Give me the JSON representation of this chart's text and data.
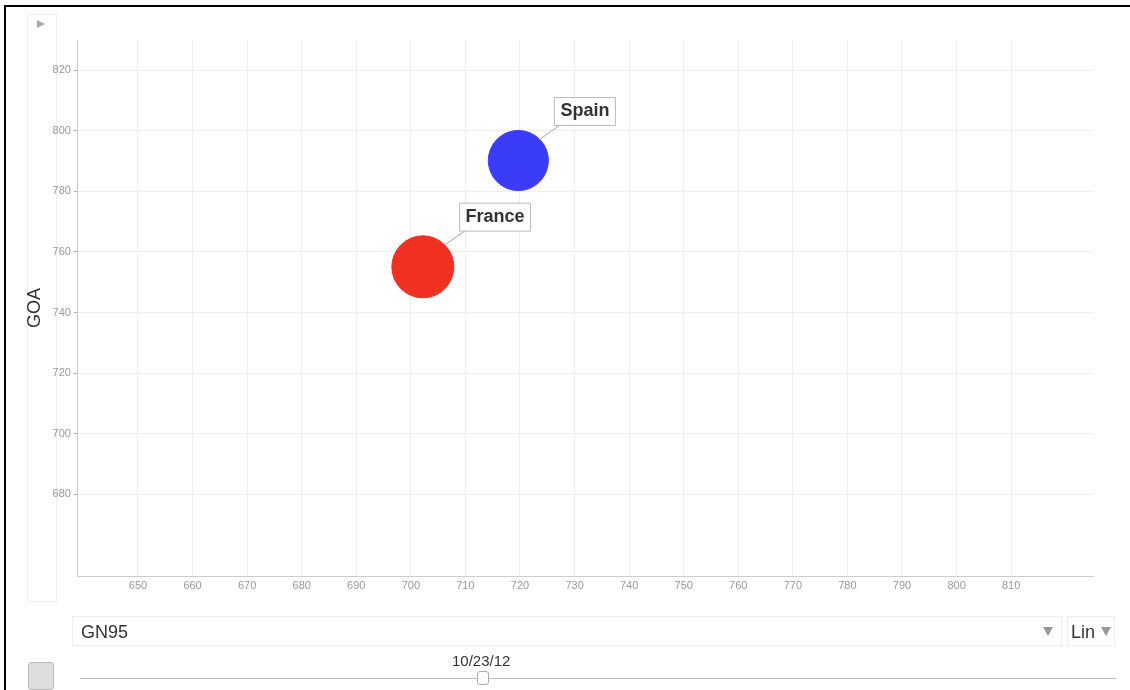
{
  "chart_data": {
    "type": "bubble",
    "xlabel": "GN95",
    "ylabel": "GOA",
    "annotations": [
      "10/23/12",
      "Lin"
    ],
    "xlim": [
      639,
      825
    ],
    "ylim": [
      653,
      830
    ],
    "xticks": [
      650,
      660,
      670,
      680,
      690,
      700,
      710,
      720,
      730,
      740,
      750,
      760,
      770,
      780,
      790,
      800,
      810
    ],
    "yticks": [
      680,
      700,
      720,
      740,
      760,
      780,
      800,
      820
    ],
    "grid": true,
    "legend": false,
    "series": [
      {
        "name": "France",
        "color": "#f03020",
        "x": [
          702.2
        ],
        "values": [
          755.1
        ],
        "sizes": [
          1
        ]
      },
      {
        "name": "Spain",
        "color": "#3a3cf8",
        "x": [
          719.7
        ],
        "values": [
          790.2
        ],
        "sizes": [
          0.94
        ]
      }
    ]
  }
}
